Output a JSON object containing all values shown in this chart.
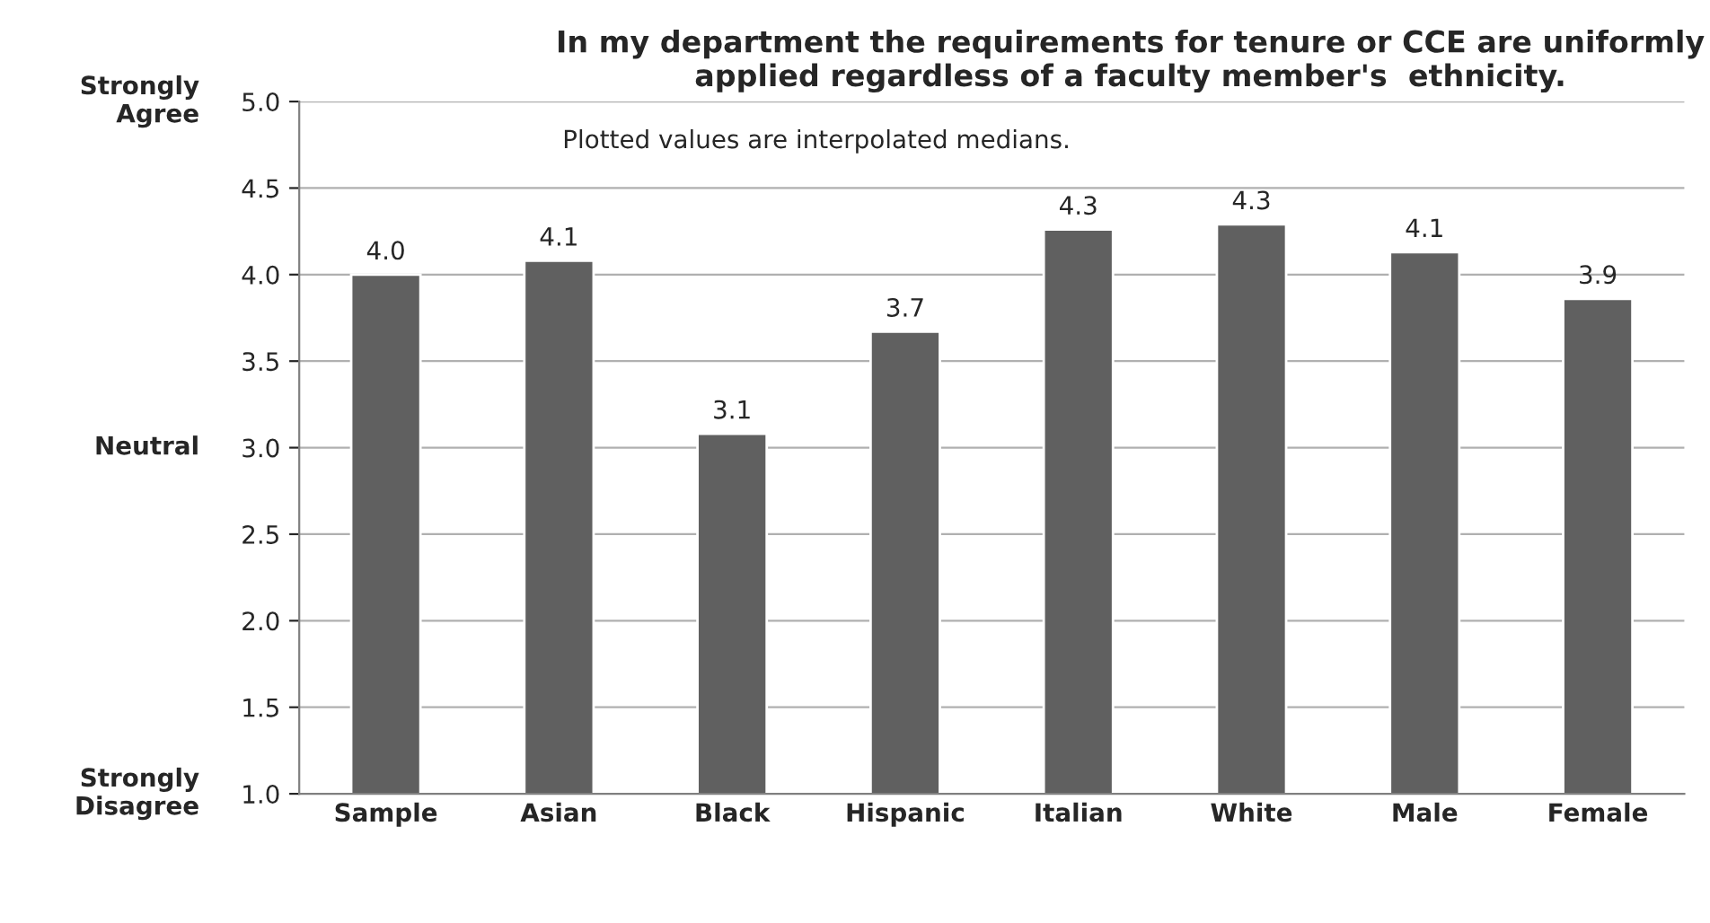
{
  "chart_data": {
    "type": "bar",
    "title": "In my department the requirements for tenure or CCE are uniformly applied regardless of a faculty member's  ethnicity.",
    "categories": [
      "Sample",
      "Asian",
      "Black",
      "Hispanic",
      "Italian",
      "White",
      "Male",
      "Female"
    ],
    "values": [
      4.0,
      4.08,
      3.08,
      3.67,
      4.26,
      4.29,
      4.13,
      3.86
    ],
    "value_labels": [
      "4.0",
      "4.1",
      "3.1",
      "3.7",
      "4.3",
      "4.3",
      "4.1",
      "3.9"
    ],
    "color": "#606060",
    "ylim": [
      1.0,
      5.0
    ],
    "yticks": [
      {
        "value": 1.0,
        "label": "1.0"
      },
      {
        "value": 1.5,
        "label": "1.5"
      },
      {
        "value": 2.0,
        "label": "2.0"
      },
      {
        "value": 2.5,
        "label": "2.5"
      },
      {
        "value": 3.0,
        "label": "3.0"
      },
      {
        "value": 3.5,
        "label": "3.5"
      },
      {
        "value": 4.0,
        "label": "4.0"
      },
      {
        "value": 4.5,
        "label": "4.5"
      },
      {
        "value": 5.0,
        "label": "5.0"
      }
    ],
    "grid": "y",
    "annotations": [
      "Plotted values are interpolated medians.",
      "Strongly\nAgree",
      "Neutral",
      "Strongly\nDisagree"
    ]
  }
}
